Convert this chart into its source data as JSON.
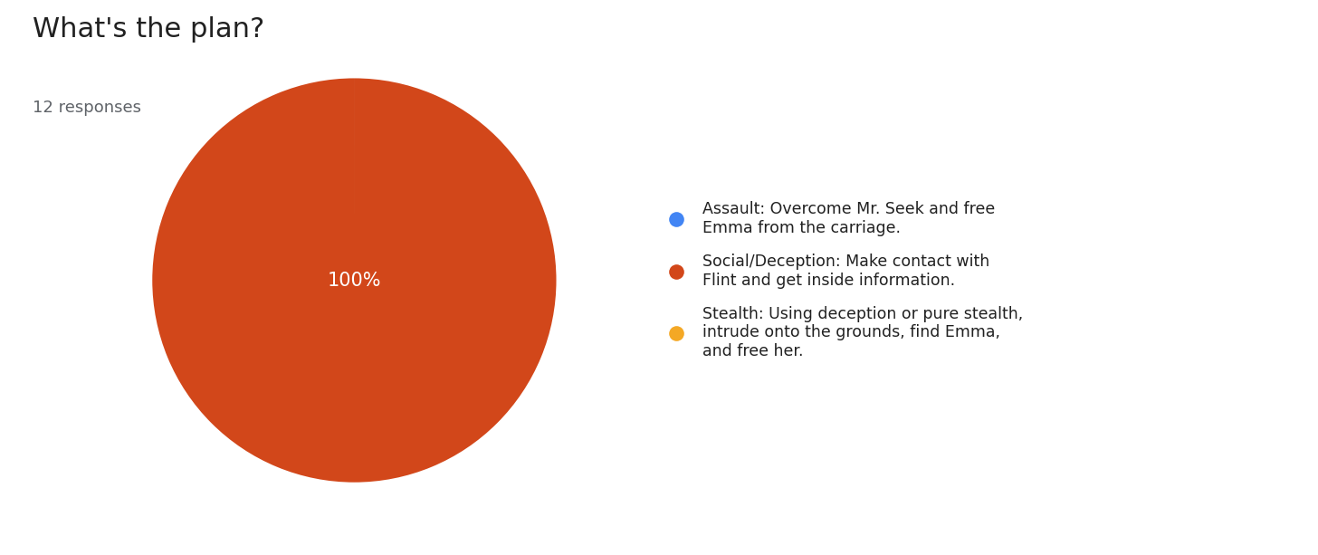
{
  "title": "What's the plan?",
  "subtitle": "12 responses",
  "slices": [
    {
      "label": "Assault: Overcome Mr. Seek and free\nEmma from the carriage.",
      "value": 0.0001,
      "color": "#4285F4"
    },
    {
      "label": "Social/Deception: Make contact with\nFlint and get inside information.",
      "value": 12,
      "color": "#D2471A"
    },
    {
      "label": "Stealth: Using deception or pure stealth,\nintrude onto the grounds, find Emma,\nand free her.",
      "value": 0.0001,
      "color": "#F4A825"
    }
  ],
  "pie_text": "100%",
  "pie_text_color": "#ffffff",
  "background_color": "#ffffff",
  "title_fontsize": 22,
  "subtitle_fontsize": 13,
  "pie_text_fontsize": 15,
  "legend_fontsize": 12.5,
  "title_color": "#212121",
  "subtitle_color": "#5f6368"
}
